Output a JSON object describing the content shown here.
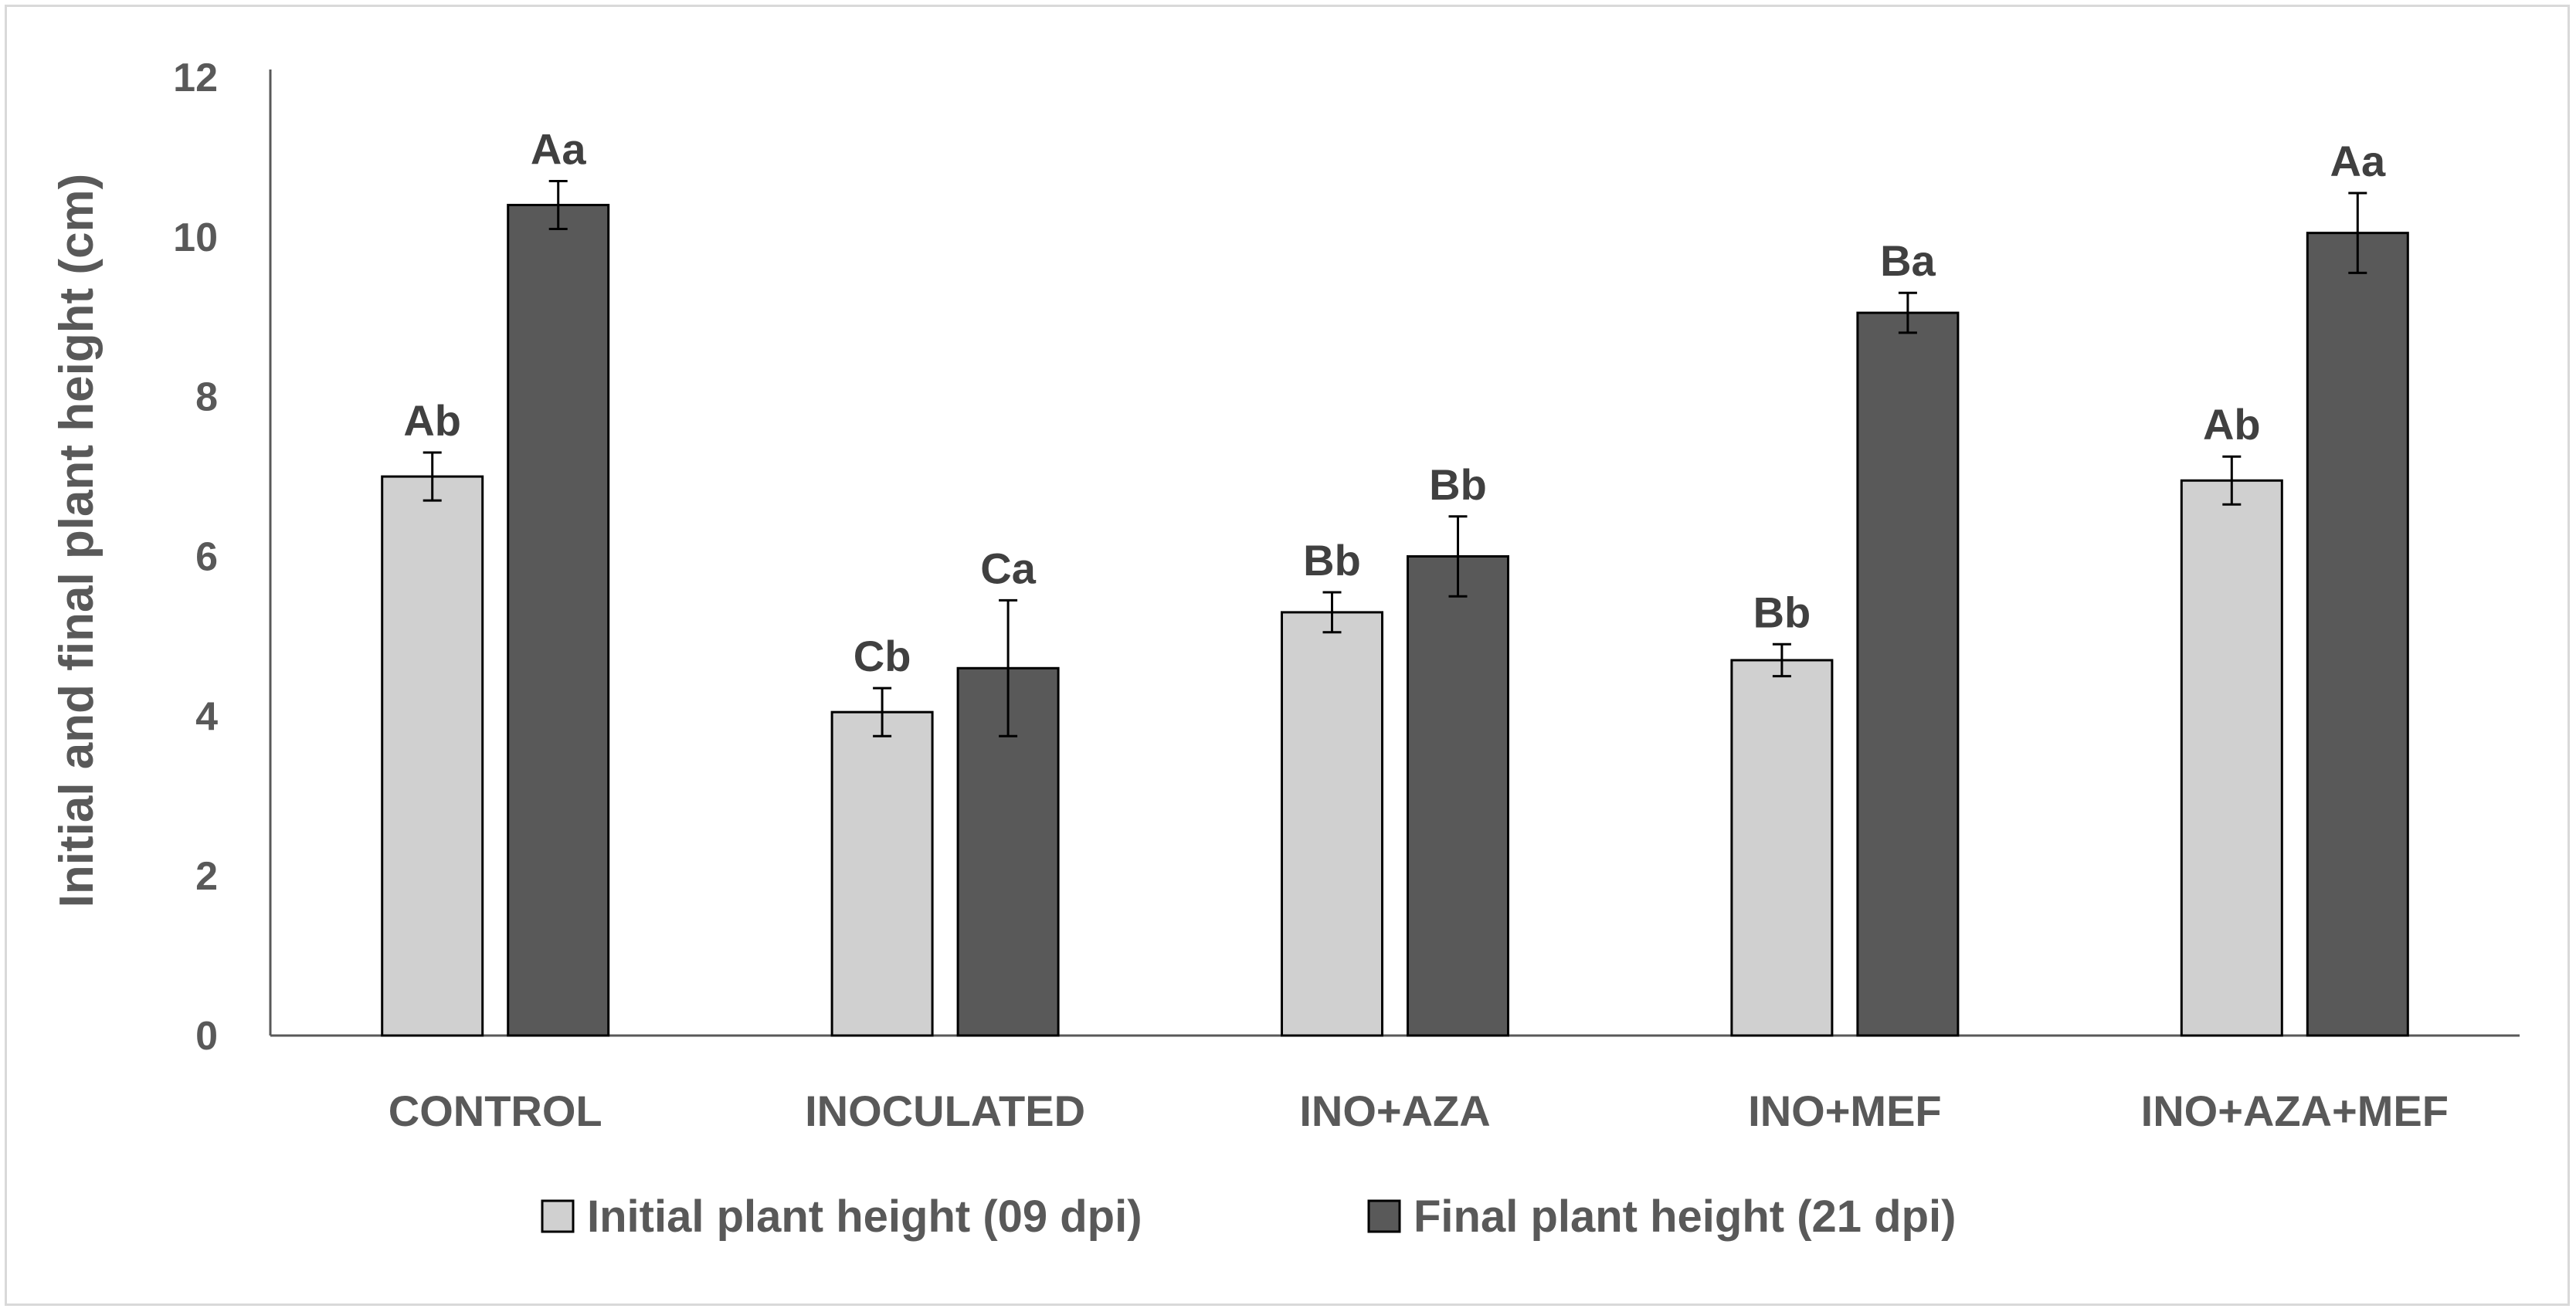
{
  "chart_data": {
    "type": "bar",
    "ylabel": "Initial and final plant height (cm)",
    "xlabel": "",
    "ylim": [
      0,
      12
    ],
    "yticks": [
      0,
      2,
      4,
      6,
      8,
      10,
      12
    ],
    "grid": false,
    "legend_position": "bottom",
    "categories": [
      "CONTROL",
      "INOCULATED",
      "INO+AZA",
      "INO+MEF",
      "INO+AZA+MEF"
    ],
    "series": [
      {
        "name": "Initial plant height (09 dpi)",
        "color": "#d0d0d0",
        "values": [
          7.0,
          4.05,
          5.3,
          4.7,
          6.95
        ],
        "errors": [
          0.3,
          0.3,
          0.25,
          0.2,
          0.3
        ],
        "labels": [
          "Ab",
          "Cb",
          "Bb",
          "Bb",
          "Ab"
        ]
      },
      {
        "name": "Final plant height (21 dpi)",
        "color": "#595959",
        "values": [
          10.4,
          4.6,
          6.0,
          9.05,
          10.05
        ],
        "errors": [
          0.3,
          0.85,
          0.5,
          0.25,
          0.5
        ],
        "labels": [
          "Aa",
          "Ca",
          "Bb",
          "Ba",
          "Aa"
        ]
      }
    ]
  }
}
